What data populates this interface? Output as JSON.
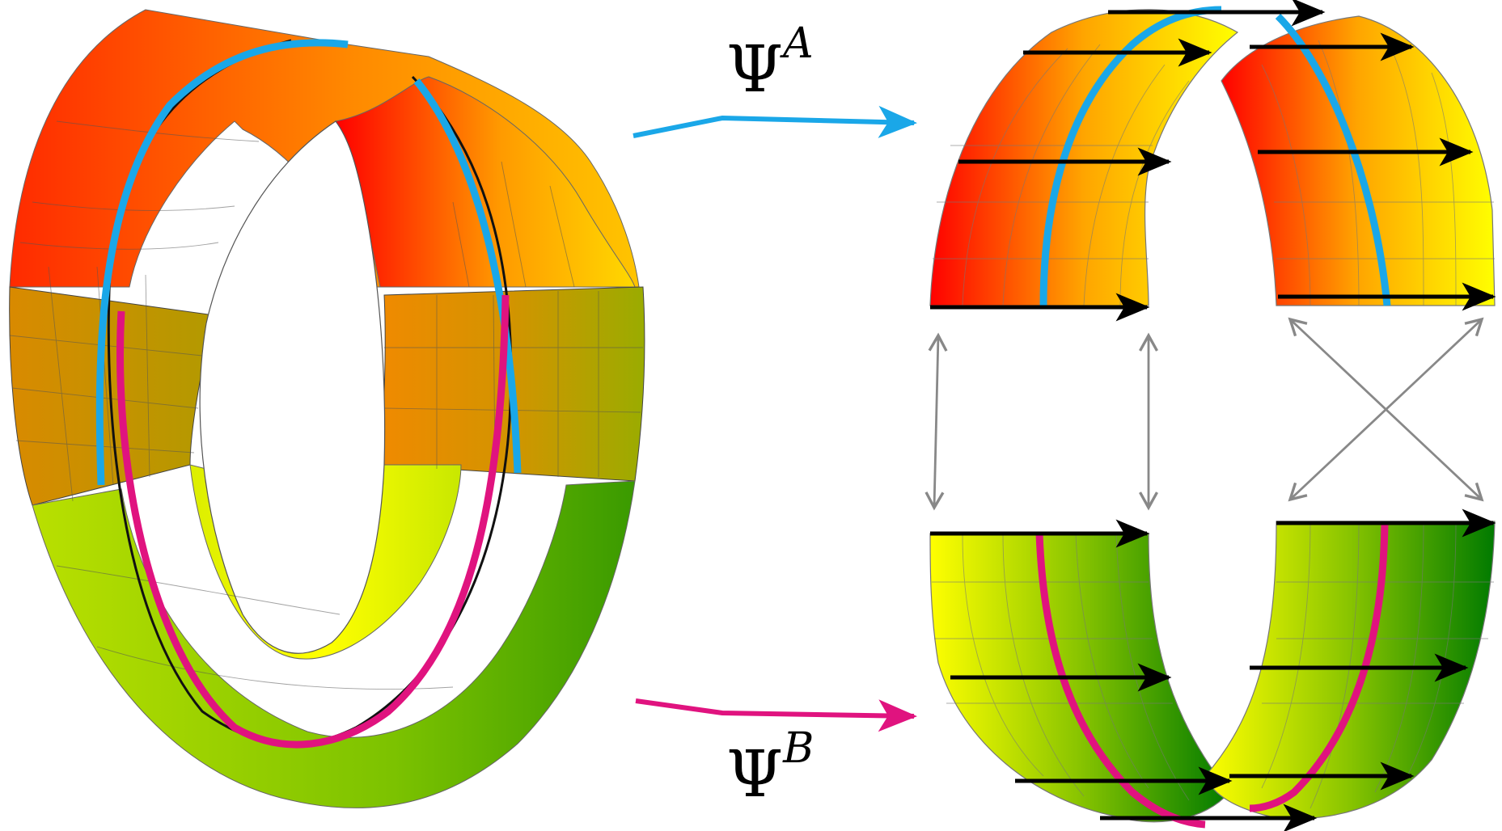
{
  "labels": {
    "psi_a_base": "Ψ",
    "psi_a_sup": "A",
    "psi_b_base": "Ψ",
    "psi_b_sup": "B"
  },
  "colors": {
    "red": "#ff0000",
    "orange": "#ff9800",
    "yellow": "#ffff00",
    "lime": "#b9e200",
    "green": "#008000",
    "olive": "#9aa800",
    "cyan_path": "#1aa7e8",
    "magenta_path": "#e0137f",
    "grid_line": "#555555",
    "correspondence_arrow": "#888888",
    "field_arrow": "#000000"
  },
  "icons": {
    "map_a_arrow": "cyan-arrow",
    "map_b_arrow": "magenta-arrow",
    "correspondence": "gray-double-arrow"
  }
}
